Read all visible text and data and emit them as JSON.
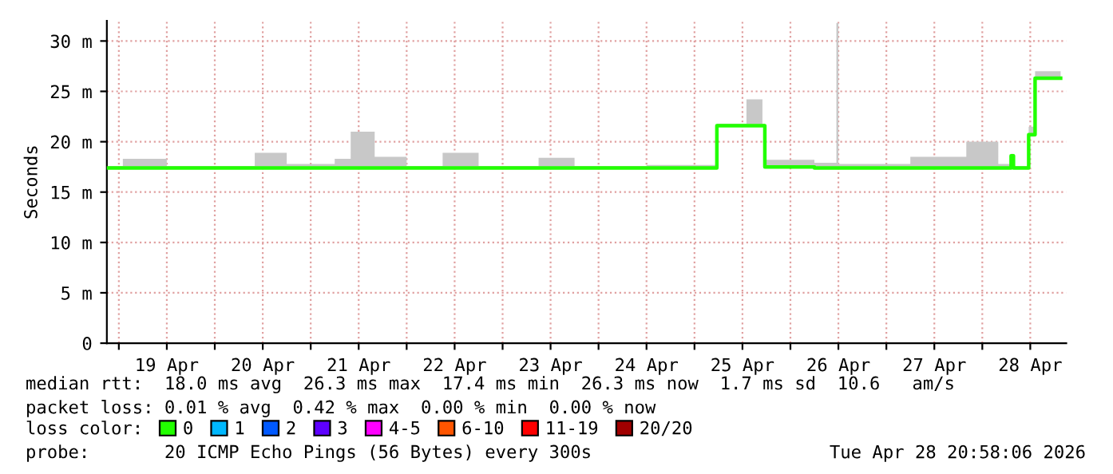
{
  "chart_data": {
    "type": "step",
    "ylabel": "Seconds",
    "legend_title": "loss color:",
    "legend": "bottom",
    "grid": true,
    "xlim": [
      "2026-04-18T21:00",
      "2026-04-28T21:00"
    ],
    "xticks": [
      {
        "value": "2026-04-19T00:00",
        "label": null
      },
      {
        "value": "2026-04-19T12:00",
        "label": "19 Apr"
      },
      {
        "value": "2026-04-20T00:00",
        "label": null
      },
      {
        "value": "2026-04-20T12:00",
        "label": "20 Apr"
      },
      {
        "value": "2026-04-21T00:00",
        "label": null
      },
      {
        "value": "2026-04-21T12:00",
        "label": "21 Apr"
      },
      {
        "value": "2026-04-22T00:00",
        "label": null
      },
      {
        "value": "2026-04-22T12:00",
        "label": "22 Apr"
      },
      {
        "value": "2026-04-23T00:00",
        "label": null
      },
      {
        "value": "2026-04-23T12:00",
        "label": "23 Apr"
      },
      {
        "value": "2026-04-24T00:00",
        "label": null
      },
      {
        "value": "2026-04-24T12:00",
        "label": "24 Apr"
      },
      {
        "value": "2026-04-25T00:00",
        "label": null
      },
      {
        "value": "2026-04-25T12:00",
        "label": "25 Apr"
      },
      {
        "value": "2026-04-26T00:00",
        "label": null
      },
      {
        "value": "2026-04-26T12:00",
        "label": "26 Apr"
      },
      {
        "value": "2026-04-27T00:00",
        "label": null
      },
      {
        "value": "2026-04-27T12:00",
        "label": "27 Apr"
      },
      {
        "value": "2026-04-28T00:00",
        "label": null
      },
      {
        "value": "2026-04-28T12:00",
        "label": "28 Apr"
      }
    ],
    "ylim": [
      0,
      32
    ],
    "yticks": [
      0,
      {
        "value": 5,
        "label": "5 m"
      },
      {
        "value": 10,
        "label": "10 m"
      },
      {
        "value": 15,
        "label": "15 m"
      },
      {
        "value": 20,
        "label": "20 m"
      },
      {
        "value": 25,
        "label": "25 m"
      },
      {
        "value": 30,
        "label": "30 m"
      }
    ],
    "series": [
      {
        "name": "0",
        "color": "#22ff00",
        "x": [
          "2026-04-18T21:00",
          "2026-04-19T01:00",
          "2026-04-19T12:00",
          "2026-04-20T00:00",
          "2026-04-20T10:00",
          "2026-04-20T18:00",
          "2026-04-21T06:00",
          "2026-04-21T10:00",
          "2026-04-21T16:00",
          "2026-04-22T00:00",
          "2026-04-22T09:00",
          "2026-04-22T18:00",
          "2026-04-23T09:00",
          "2026-04-23T18:00",
          "2026-04-24T12:00",
          "2026-04-25T05:00",
          "2026-04-25T05:36",
          "2026-04-25T13:00",
          "2026-04-25T17:00",
          "2026-04-25T17:36",
          "2026-04-26T06:00",
          "2026-04-26T11:30",
          "2026-04-26T12:00",
          "2026-04-27T06:00",
          "2026-04-27T20:00",
          "2026-04-28T04:00",
          "2026-04-28T07:12",
          "2026-04-28T07:48",
          "2026-04-28T11:36",
          "2026-04-28T13:12",
          "2026-04-28T19:36"
        ],
        "values": [
          17.4,
          17.4,
          17.4,
          17.4,
          17.4,
          17.4,
          17.4,
          17.4,
          17.4,
          17.4,
          17.4,
          17.4,
          17.4,
          17.4,
          17.4,
          17.4,
          21.6,
          21.6,
          21.6,
          17.5,
          17.4,
          17.4,
          17.4,
          17.4,
          17.4,
          17.4,
          18.6,
          17.4,
          20.7,
          26.3,
          26.3
        ],
        "lower": [
          17.3,
          17.3,
          17.3,
          17.3,
          17.3,
          17.3,
          17.3,
          17.3,
          17.3,
          17.3,
          17.3,
          17.3,
          17.3,
          17.3,
          17.3,
          17.3,
          21.5,
          21.5,
          21.5,
          17.4,
          17.3,
          17.3,
          17.3,
          17.3,
          17.3,
          17.3,
          18.4,
          17.3,
          20.5,
          26.2,
          26.2
        ],
        "upper": [
          17.6,
          18.3,
          17.6,
          17.6,
          18.9,
          17.8,
          18.3,
          21.0,
          18.5,
          17.6,
          18.9,
          17.6,
          18.4,
          17.6,
          17.7,
          17.7,
          21.8,
          24.2,
          21.8,
          18.2,
          17.9,
          31.8,
          17.8,
          18.5,
          20.0,
          17.8,
          18.8,
          17.6,
          21.5,
          27.0,
          26.8
        ]
      },
      {
        "name": "1",
        "color": "#00b8ff"
      },
      {
        "name": "2",
        "color": "#0059ff"
      },
      {
        "name": "3",
        "color": "#5e00ff"
      },
      {
        "name": "4-5",
        "color": "#ff00ff"
      },
      {
        "name": "6-10",
        "color": "#ff5500"
      },
      {
        "name": "11-19",
        "color": "#ff0000"
      },
      {
        "name": "20/20",
        "color": "#a10000"
      }
    ],
    "annotations": [
      "median rtt:  18.0 ms avg  26.3 ms max  17.4 ms min  26.3 ms now  1.7 ms sd  10.6   am/s",
      "packet loss: 0.01 % avg  0.42 % max  0.00 % min  0.00 % now",
      "probe:       20 ICMP Echo Pings (56 Bytes) every 300s",
      "Tue Apr 28 20:58:06 2026"
    ]
  }
}
